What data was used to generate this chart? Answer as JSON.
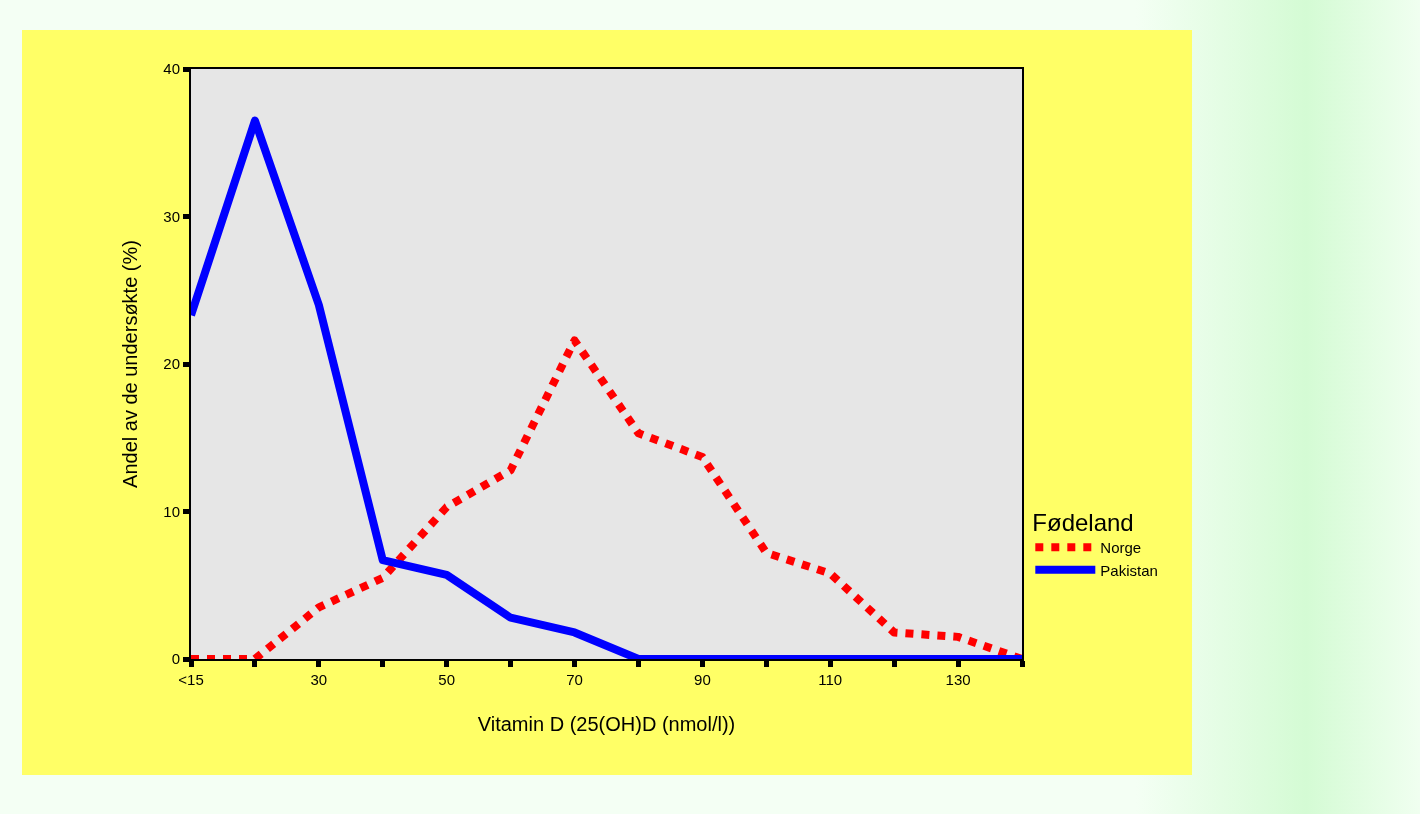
{
  "chart_data": {
    "type": "line",
    "xlabel": "Vitamin D (25(OH)D (nmol/l))",
    "ylabel": "Andel av de undersøkte (%)",
    "legend_title": "Fødeland",
    "x": [
      10,
      20,
      30,
      40,
      50,
      60,
      70,
      80,
      90,
      100,
      110,
      120,
      130,
      140
    ],
    "series": [
      {
        "name": "Norge",
        "color": "#ff0000",
        "line_style": "dotted",
        "values": [
          0,
          0,
          3.5,
          5.5,
          10.3,
          12.8,
          21.6,
          15.3,
          13.7,
          7.2,
          5.8,
          1.8,
          1.5,
          0
        ]
      },
      {
        "name": "Pakistan",
        "color": "#0000ff",
        "line_style": "solid",
        "values": [
          23.3,
          36.5,
          24,
          6.7,
          5.7,
          2.8,
          1.8,
          0,
          0,
          0,
          0,
          0,
          0,
          0
        ]
      }
    ],
    "xlim": [
      10,
      140
    ],
    "xticks": [
      {
        "value": 10,
        "label": "<15"
      },
      {
        "value": 20,
        "label": null
      },
      30,
      {
        "value": 40,
        "label": null
      },
      50,
      {
        "value": 60,
        "label": null
      },
      70,
      {
        "value": 80,
        "label": null
      },
      90,
      {
        "value": 100,
        "label": null
      },
      110,
      {
        "value": 120,
        "label": null
      },
      130,
      {
        "value": 140,
        "label": null
      }
    ],
    "ylim": [
      0,
      40
    ],
    "yticks": [
      0,
      10,
      20,
      30,
      40
    ],
    "grid": false,
    "legend": "right",
    "marker": "none"
  }
}
